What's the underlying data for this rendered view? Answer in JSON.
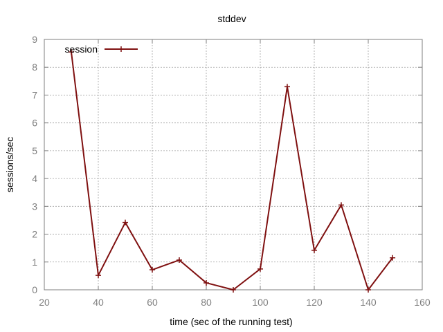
{
  "chart_data": {
    "type": "line",
    "title": "stddev",
    "xlabel": "time (sec of the running test)",
    "ylabel": "sessions/sec",
    "xlim": [
      20,
      160
    ],
    "ylim": [
      0,
      9
    ],
    "xticks": [
      20,
      40,
      60,
      80,
      100,
      120,
      140,
      160
    ],
    "yticks": [
      0,
      1,
      2,
      3,
      4,
      5,
      6,
      7,
      8,
      9
    ],
    "grid": true,
    "legend": "top-left",
    "series": [
      {
        "name": "session",
        "color": "#7f1010",
        "marker": "plus",
        "x": [
          30,
          40,
          50,
          60,
          70,
          80,
          90,
          100,
          110,
          120,
          130,
          140,
          149
        ],
        "y": [
          8.55,
          0.52,
          2.42,
          0.72,
          1.07,
          0.25,
          0.0,
          0.75,
          7.3,
          1.42,
          3.05,
          0.0,
          1.15
        ]
      }
    ]
  }
}
